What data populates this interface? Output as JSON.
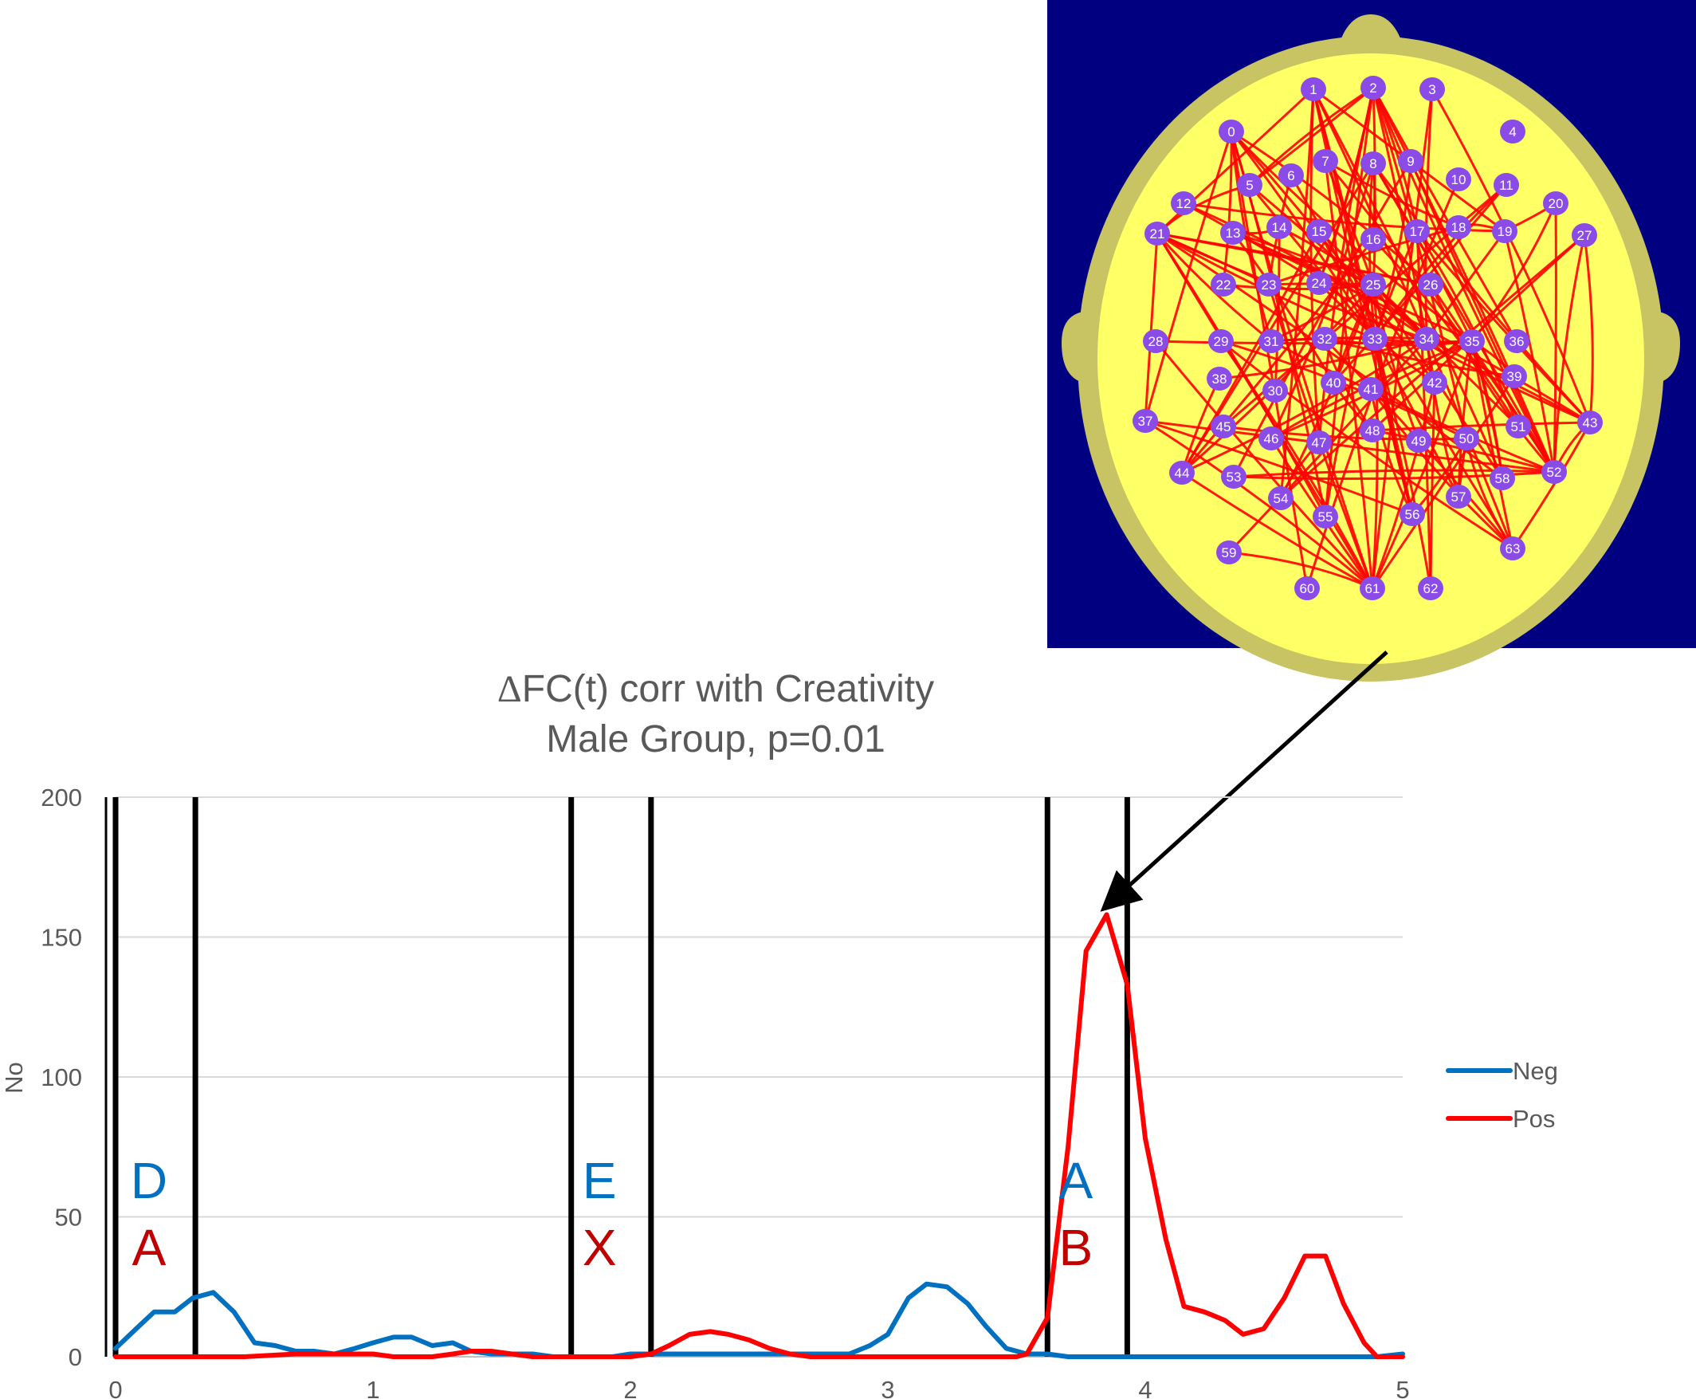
{
  "chart_data": {
    "type": "line",
    "title": "ΔFC(t) corr with Creativity",
    "subtitle": "Male Group, p=0.01",
    "xlabel": "",
    "ylabel": "No",
    "xlim": [
      0,
      5
    ],
    "ylim": [
      0,
      200
    ],
    "xticks": [
      0,
      1,
      2,
      3,
      4,
      5
    ],
    "yticks": [
      0,
      50,
      100,
      150,
      200
    ],
    "grid": true,
    "legend_position": "right",
    "series": [
      {
        "name": "Neg",
        "color": "#0070C0",
        "points": [
          [
            0,
            3
          ],
          [
            0.08,
            10
          ],
          [
            0.15,
            16
          ],
          [
            0.23,
            16
          ],
          [
            0.3,
            21
          ],
          [
            0.38,
            23
          ],
          [
            0.46,
            16
          ],
          [
            0.54,
            5
          ],
          [
            0.62,
            4
          ],
          [
            0.7,
            2
          ],
          [
            0.77,
            2
          ],
          [
            0.85,
            1
          ],
          [
            0.93,
            3
          ],
          [
            1.0,
            5
          ],
          [
            1.08,
            7
          ],
          [
            1.15,
            7
          ],
          [
            1.23,
            4
          ],
          [
            1.31,
            5
          ],
          [
            1.38,
            2
          ],
          [
            1.46,
            1
          ],
          [
            1.54,
            1
          ],
          [
            1.62,
            1
          ],
          [
            1.7,
            0
          ],
          [
            1.77,
            0
          ],
          [
            1.85,
            0
          ],
          [
            1.93,
            0
          ],
          [
            2.0,
            1
          ],
          [
            2.08,
            1
          ],
          [
            2.15,
            1
          ],
          [
            2.23,
            1
          ],
          [
            2.31,
            1
          ],
          [
            2.38,
            1
          ],
          [
            2.46,
            1
          ],
          [
            2.54,
            1
          ],
          [
            2.62,
            1
          ],
          [
            2.7,
            1
          ],
          [
            2.77,
            1
          ],
          [
            2.85,
            1
          ],
          [
            2.93,
            4
          ],
          [
            3.0,
            8
          ],
          [
            3.08,
            21
          ],
          [
            3.15,
            26
          ],
          [
            3.23,
            25
          ],
          [
            3.31,
            19
          ],
          [
            3.38,
            11
          ],
          [
            3.46,
            3
          ],
          [
            3.54,
            1
          ],
          [
            3.62,
            1
          ],
          [
            3.7,
            0
          ],
          [
            3.77,
            0
          ],
          [
            3.85,
            0
          ],
          [
            3.93,
            0
          ],
          [
            4.0,
            0
          ],
          [
            4.5,
            0
          ],
          [
            4.9,
            0
          ],
          [
            5.0,
            1
          ]
        ]
      },
      {
        "name": "Pos",
        "color": "#FF0000",
        "points": [
          [
            0,
            0
          ],
          [
            0.5,
            0
          ],
          [
            0.7,
            1
          ],
          [
            0.93,
            1
          ],
          [
            1.0,
            1
          ],
          [
            1.08,
            0
          ],
          [
            1.23,
            0
          ],
          [
            1.31,
            1
          ],
          [
            1.38,
            2
          ],
          [
            1.46,
            2
          ],
          [
            1.54,
            1
          ],
          [
            1.62,
            0
          ],
          [
            1.93,
            0
          ],
          [
            2.0,
            0
          ],
          [
            2.08,
            1
          ],
          [
            2.15,
            4
          ],
          [
            2.23,
            8
          ],
          [
            2.31,
            9
          ],
          [
            2.38,
            8
          ],
          [
            2.46,
            6
          ],
          [
            2.54,
            3
          ],
          [
            2.62,
            1
          ],
          [
            2.7,
            0
          ],
          [
            3.5,
            0
          ],
          [
            3.54,
            1
          ],
          [
            3.62,
            14
          ],
          [
            3.7,
            75
          ],
          [
            3.77,
            145
          ],
          [
            3.85,
            158
          ],
          [
            3.93,
            133
          ],
          [
            4.0,
            78
          ],
          [
            4.08,
            42
          ],
          [
            4.15,
            18
          ],
          [
            4.23,
            16
          ],
          [
            4.31,
            13
          ],
          [
            4.38,
            8
          ],
          [
            4.46,
            10
          ],
          [
            4.54,
            21
          ],
          [
            4.62,
            36
          ],
          [
            4.7,
            36
          ],
          [
            4.77,
            19
          ],
          [
            4.85,
            5
          ],
          [
            4.9,
            0
          ],
          [
            5.0,
            0
          ]
        ]
      }
    ],
    "phase_boundaries": [
      0.0,
      0.31,
      1.77,
      2.08,
      3.62,
      3.93
    ],
    "phase_labels": [
      {
        "x": 0.13,
        "top": "D",
        "bottom": "A"
      },
      {
        "x": 1.88,
        "top": "E",
        "bottom": "X"
      },
      {
        "x": 3.73,
        "top": "A",
        "bottom": "B"
      }
    ],
    "label_colors": {
      "top": "#0070C0",
      "bottom": "#C00000"
    },
    "annotation": {
      "type": "arrow",
      "target": [
        3.85,
        158
      ],
      "points_to": "head-map"
    }
  },
  "head_map": {
    "background": "#000080",
    "head_color": "#C8C464",
    "scalp_color": "#FFFF66",
    "node_color": "#8A4BE6",
    "edge_color": "#FF0000",
    "nodes": [
      {
        "label": "1"
      },
      {
        "label": "2"
      },
      {
        "label": "3"
      },
      {
        "label": "0"
      },
      {
        "label": "4"
      },
      {
        "label": "5"
      },
      {
        "label": "6"
      },
      {
        "label": "7"
      },
      {
        "label": "8"
      },
      {
        "label": "9"
      },
      {
        "label": "10"
      },
      {
        "label": "11"
      },
      {
        "label": "20"
      },
      {
        "label": "12"
      },
      {
        "label": "27"
      },
      {
        "label": "21"
      },
      {
        "label": "13"
      },
      {
        "label": "14"
      },
      {
        "label": "15"
      },
      {
        "label": "16"
      },
      {
        "label": "17"
      },
      {
        "label": "18"
      },
      {
        "label": "19"
      },
      {
        "label": "22"
      },
      {
        "label": "23"
      },
      {
        "label": "24"
      },
      {
        "label": "25"
      },
      {
        "label": "26"
      },
      {
        "label": "28"
      },
      {
        "label": "29"
      },
      {
        "label": "31"
      },
      {
        "label": "32"
      },
      {
        "label": "33"
      },
      {
        "label": "34"
      },
      {
        "label": "35"
      },
      {
        "label": "36"
      },
      {
        "label": "38"
      },
      {
        "label": "30"
      },
      {
        "label": "40"
      },
      {
        "label": "41"
      },
      {
        "label": "42"
      },
      {
        "label": "37"
      },
      {
        "label": "45"
      },
      {
        "label": "46"
      },
      {
        "label": "47"
      },
      {
        "label": "48"
      },
      {
        "label": "49"
      },
      {
        "label": "50"
      },
      {
        "label": "51"
      },
      {
        "label": "43"
      },
      {
        "label": "44"
      },
      {
        "label": "53"
      },
      {
        "label": "58"
      },
      {
        "label": "52"
      },
      {
        "label": "54"
      },
      {
        "label": "55"
      },
      {
        "label": "56"
      },
      {
        "label": "57"
      },
      {
        "label": "59"
      },
      {
        "label": "63"
      },
      {
        "label": "60"
      },
      {
        "label": "61"
      },
      {
        "label": "62"
      },
      {
        "label": "39"
      }
    ]
  }
}
